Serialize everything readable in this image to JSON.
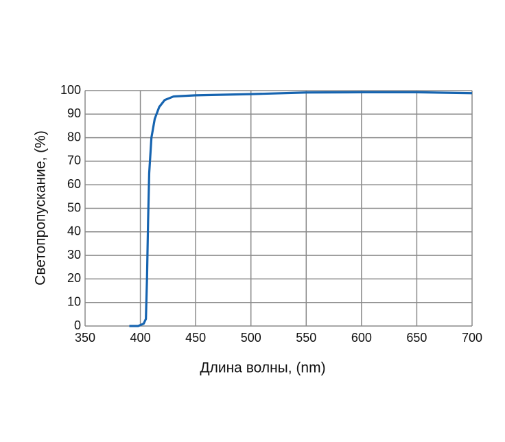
{
  "chart_data": {
    "type": "line",
    "x_label": "Длина волны, (nm)",
    "y_label": "Светопропускание, (%)",
    "x": [
      390,
      398,
      403,
      405,
      406,
      407,
      408,
      410,
      413,
      417,
      422,
      430,
      450,
      500,
      550,
      600,
      650,
      700
    ],
    "series": [
      {
        "color": "#1664b0",
        "values": [
          0,
          0,
          1,
          3,
          20,
          45,
          65,
          80,
          88,
          93,
          96,
          97.5,
          98,
          98.5,
          99.2,
          99.3,
          99.3,
          98.9
        ]
      }
    ],
    "xlim": [
      350,
      700
    ],
    "xticks": [
      350,
      400,
      450,
      500,
      550,
      600,
      650,
      700
    ],
    "ylim": [
      0,
      100
    ],
    "yticks": [
      0,
      10,
      20,
      30,
      40,
      50,
      60,
      70,
      80,
      90,
      100
    ],
    "grid": true
  }
}
